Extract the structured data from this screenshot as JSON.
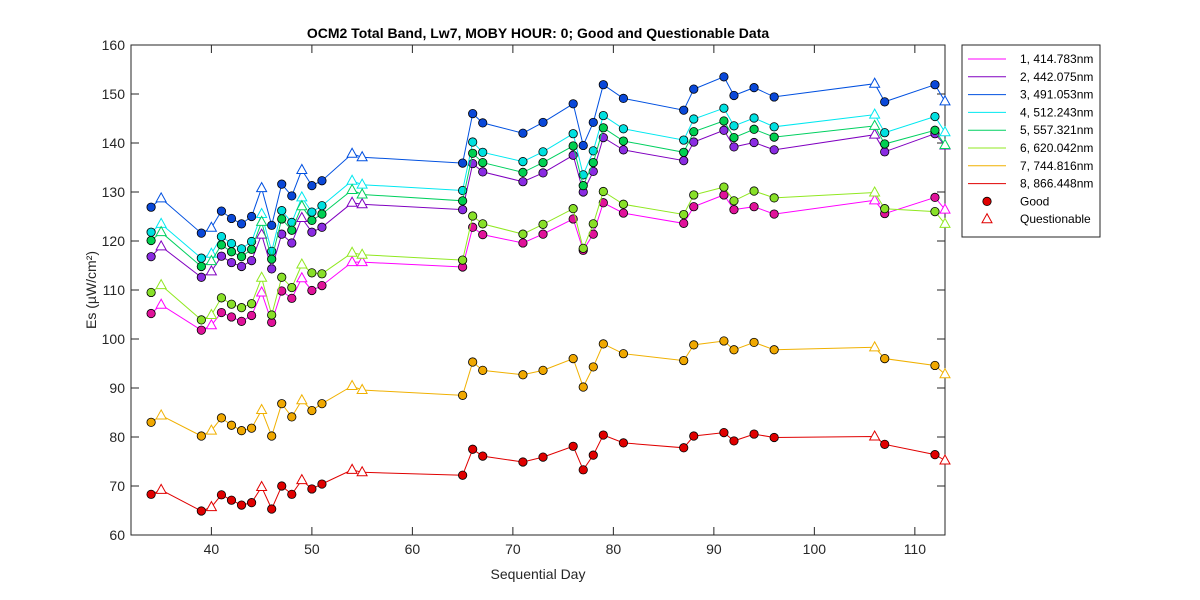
{
  "chart_data": {
    "type": "line",
    "title": "OCM2 Total Band,  Lw7, MOBY HOUR: 0;  Good and Questionable Data",
    "xlabel": "Sequential Day",
    "ylabel": "Es (µW/cm²)",
    "xlim": [
      32,
      113
    ],
    "ylim": [
      60,
      160
    ],
    "xticks": [
      40,
      50,
      60,
      70,
      80,
      90,
      100,
      110
    ],
    "yticks": [
      60,
      70,
      80,
      90,
      100,
      110,
      120,
      130,
      140,
      150,
      160
    ],
    "grid": false,
    "legend_position": "outside-right",
    "x": [
      34,
      35,
      39,
      40,
      41,
      42,
      43,
      44,
      45,
      46,
      47,
      48,
      49,
      50,
      51,
      54,
      55,
      65,
      66,
      67,
      71,
      73,
      76,
      77,
      78,
      79,
      81,
      87,
      88,
      91,
      92,
      94,
      96,
      106,
      107,
      112,
      113
    ],
    "quality": [
      "G",
      "Q",
      "G",
      "Q",
      "G",
      "G",
      "G",
      "G",
      "Q",
      "G",
      "G",
      "G",
      "Q",
      "G",
      "G",
      "Q",
      "Q",
      "G",
      "G",
      "G",
      "G",
      "G",
      "G",
      "G",
      "G",
      "G",
      "G",
      "G",
      "G",
      "G",
      "G",
      "G",
      "G",
      "Q",
      "G",
      "G",
      "Q"
    ],
    "series": [
      {
        "name": "1, 414.783nm",
        "color": "#ff00ff",
        "fill": "#e0129a",
        "values": [
          105.2,
          107.0,
          101.8,
          102.8,
          105.4,
          104.5,
          103.6,
          104.8,
          109.5,
          103.4,
          109.8,
          108.3,
          112.4,
          109.9,
          110.9,
          115.7,
          115.7,
          114.7,
          122.8,
          121.3,
          119.6,
          121.4,
          124.5,
          118.1,
          121.4,
          127.8,
          125.7,
          123.6,
          127.0,
          129.4,
          126.4,
          127.0,
          125.5,
          128.3,
          125.6,
          128.9,
          126.4
        ]
      },
      {
        "name": "2, 442.075nm",
        "color": "#8000c0",
        "fill": "#8a2be2",
        "values": [
          116.8,
          118.9,
          112.6,
          113.8,
          116.9,
          115.6,
          114.8,
          116.0,
          121.3,
          114.3,
          121.4,
          119.6,
          124.7,
          121.8,
          122.8,
          127.8,
          127.5,
          126.4,
          135.8,
          134.1,
          132.1,
          133.9,
          137.5,
          130.0,
          134.2,
          141.1,
          138.6,
          136.4,
          140.2,
          142.6,
          139.2,
          140.1,
          138.6,
          141.7,
          138.2,
          141.9,
          139.5
        ]
      },
      {
        "name": "3, 491.053nm",
        "color": "#0050e0",
        "fill": "#0a48d8",
        "values": [
          126.9,
          128.7,
          121.6,
          122.7,
          126.1,
          124.6,
          123.5,
          125.0,
          130.8,
          123.2,
          131.6,
          129.2,
          134.5,
          131.3,
          132.3,
          137.8,
          137.1,
          135.9,
          146.0,
          144.1,
          142.0,
          144.2,
          148.0,
          139.5,
          144.2,
          151.9,
          149.1,
          146.7,
          151.0,
          153.5,
          149.7,
          151.3,
          149.4,
          152.1,
          148.4,
          151.9,
          148.5
        ]
      },
      {
        "name": "4, 512.243nm",
        "color": "#00e8f0",
        "fill": "#00e0e0",
        "values": [
          121.8,
          123.5,
          116.5,
          117.4,
          120.9,
          119.5,
          118.4,
          119.9,
          125.5,
          117.9,
          126.2,
          123.8,
          128.9,
          125.9,
          127.2,
          132.3,
          131.5,
          130.3,
          140.2,
          138.1,
          136.2,
          138.2,
          141.9,
          133.5,
          138.4,
          145.6,
          142.9,
          140.6,
          144.9,
          147.1,
          143.5,
          145.1,
          143.3,
          145.8,
          142.1,
          145.4,
          142.2
        ]
      },
      {
        "name": "5, 557.321nm",
        "color": "#00d060",
        "fill": "#00d050",
        "values": [
          120.1,
          121.8,
          114.8,
          115.9,
          119.2,
          117.8,
          116.8,
          118.3,
          123.9,
          116.3,
          124.5,
          122.2,
          127.1,
          124.2,
          125.5,
          130.4,
          129.5,
          128.2,
          137.9,
          136.0,
          134.0,
          136.0,
          139.4,
          131.3,
          136.0,
          143.1,
          140.4,
          138.1,
          142.3,
          144.5,
          141.1,
          142.8,
          141.2,
          143.5,
          139.8,
          142.6,
          139.6
        ]
      },
      {
        "name": "6, 620.042nm",
        "color": "#90e820",
        "fill": "#88e028",
        "values": [
          109.5,
          111.0,
          103.9,
          104.9,
          108.4,
          107.1,
          106.4,
          107.2,
          112.5,
          104.9,
          112.6,
          110.5,
          115.2,
          113.5,
          113.3,
          117.6,
          117.2,
          116.1,
          125.1,
          123.5,
          121.4,
          123.4,
          126.6,
          118.5,
          123.5,
          130.1,
          127.5,
          125.4,
          129.4,
          131.0,
          128.2,
          130.2,
          128.8,
          129.9,
          126.6,
          126.0,
          123.5
        ]
      },
      {
        "name": "7, 744.816nm",
        "color": "#f0b000",
        "fill": "#f0a800",
        "values": [
          83.0,
          84.4,
          80.2,
          81.3,
          83.9,
          82.4,
          81.3,
          81.8,
          85.5,
          80.2,
          86.8,
          84.1,
          87.5,
          85.4,
          86.8,
          90.4,
          89.6,
          88.5,
          95.3,
          93.6,
          92.7,
          93.6,
          96.0,
          90.2,
          94.3,
          99.0,
          97.0,
          95.6,
          98.8,
          99.6,
          97.8,
          99.3,
          97.8,
          98.3,
          96.0,
          94.6,
          92.8
        ]
      },
      {
        "name": "8, 866.448nm",
        "color": "#e00000",
        "fill": "#e00000",
        "values": [
          68.3,
          69.2,
          64.9,
          65.7,
          68.2,
          67.1,
          66.1,
          66.6,
          69.8,
          65.3,
          70.0,
          68.3,
          71.2,
          69.4,
          70.4,
          73.3,
          72.8,
          72.2,
          77.5,
          76.1,
          74.9,
          75.9,
          78.1,
          73.3,
          76.3,
          80.4,
          78.8,
          77.8,
          80.2,
          80.9,
          79.2,
          80.6,
          79.9,
          80.1,
          78.5,
          76.4,
          75.2
        ]
      }
    ],
    "markers": [
      {
        "name": "Good",
        "shape": "circle",
        "color": "#e00000"
      },
      {
        "name": "Questionable",
        "shape": "triangle",
        "color": "#e00000"
      }
    ]
  }
}
